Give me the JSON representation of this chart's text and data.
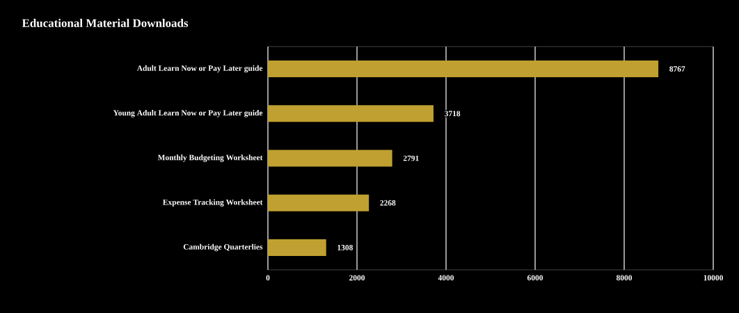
{
  "chart_data": {
    "type": "bar",
    "orientation": "horizontal",
    "title": "Educational Material Downloads",
    "categories": [
      "Adult Learn Now or Pay Later guide",
      "Young Adult Learn Now or Pay Later guide",
      "Monthly Budgeting Worksheet",
      "Expense Tracking Worksheet",
      "Cambridge Quarterlies"
    ],
    "values": [
      8767,
      3718,
      2791,
      2268,
      1308
    ],
    "color": "#c0a030",
    "xlim": [
      0,
      10000
    ],
    "xticks": [
      0,
      2000,
      4000,
      6000,
      8000,
      10000
    ],
    "grid": "x",
    "data_labels": true
  }
}
